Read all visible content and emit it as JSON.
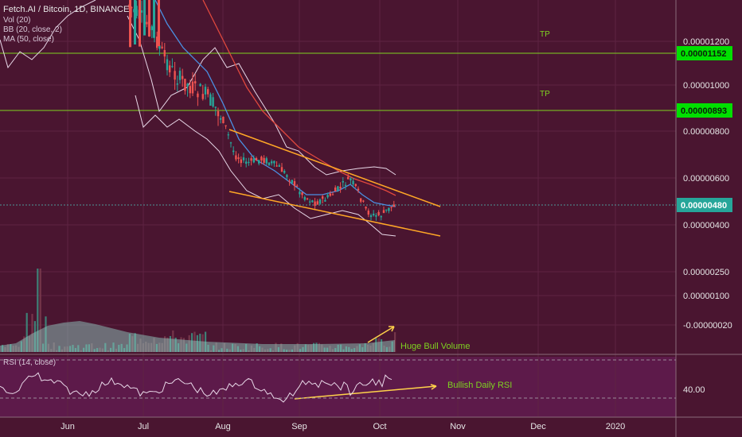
{
  "header": {
    "symbol_line": "Fetch.AI / Bitcoin, 1D, BINANCE",
    "indicators": [
      "Vol (20)",
      "BB (20, close, 2)",
      "MA (50, close)"
    ]
  },
  "colors": {
    "background": "#4a1530",
    "rsi_band": "#6a1e58",
    "bull_candle": "#26a69a",
    "bear_candle": "#ef5350",
    "bollinger": "#e8d8e8",
    "ma50": "#e0483e",
    "mid_band": "#4a90e2",
    "trendline": "#ffa726",
    "target_line": "#7ed321",
    "price_badge": "#26a69a",
    "target_badge": "#00e000",
    "annotation_text": "#7ed321"
  },
  "price_axis": {
    "ticks": [
      "0.00001200",
      "0.00001000",
      "0.00000800",
      "0.00000600",
      "0.00000400",
      "0.00000250",
      "0.00000100",
      "-0.00000020"
    ],
    "badges": [
      {
        "label": "0.00001152",
        "kind": "target"
      },
      {
        "label": "0.00000893",
        "kind": "target"
      },
      {
        "label": "0.00000480",
        "kind": "current"
      }
    ]
  },
  "time_axis": {
    "ticks": [
      "Jun",
      "Jul",
      "Aug",
      "Sep",
      "Oct",
      "Nov",
      "Dec",
      "2020"
    ]
  },
  "annotations": {
    "tp_1": "TP",
    "tp_2": "TP",
    "volume_note": "Huge Bull Volume",
    "rsi_note": "Bullish Daily RSI"
  },
  "rsi_panel": {
    "label": "RSI (14, close)",
    "axis_value": "40.00"
  },
  "chart_data": {
    "type": "candlestick",
    "title": "Fetch.AI / Bitcoin, 1D, BINANCE",
    "price_range": [
      -2e-07,
      1.25e-05
    ],
    "y_scale": "log",
    "current_price": 4.8e-06,
    "target_levels": [
      1.152e-05,
      8.93e-06
    ],
    "candle_close_path": [
      [
        1.25e-05,
        9.5e-06
      ],
      [
        9.5e-06,
        9.2e-06
      ],
      [
        9e-06,
        7.8e-06
      ],
      [
        7.8e-06,
        6.8e-06
      ],
      [
        6.8e-06,
        6.5e-06
      ],
      [
        6.5e-06,
        5.8e-06
      ],
      [
        5.8e-06,
        5.2e-06
      ],
      [
        5.2e-06,
        5e-06
      ],
      [
        5e-06,
        5.2e-06
      ],
      [
        5.2e-06,
        5.8e-06
      ],
      [
        5.8e-06,
        4.5e-06
      ],
      [
        4.5e-06,
        4.2e-06
      ],
      [
        4.2e-06,
        4.8e-06
      ]
    ],
    "trendlines": {
      "upper": [
        [
          8.2e-06,
          4.7e-06
        ]
      ],
      "lower": [
        [
          5.2e-06,
          3.9e-06
        ]
      ]
    },
    "volume": {
      "label": "Vol (20)",
      "spike_start": 120
    },
    "rsi": {
      "period": 14,
      "reference_level": 40,
      "upper_dashed": 70,
      "lower_dashed": 30
    },
    "grid": true,
    "legend": "top-left"
  }
}
